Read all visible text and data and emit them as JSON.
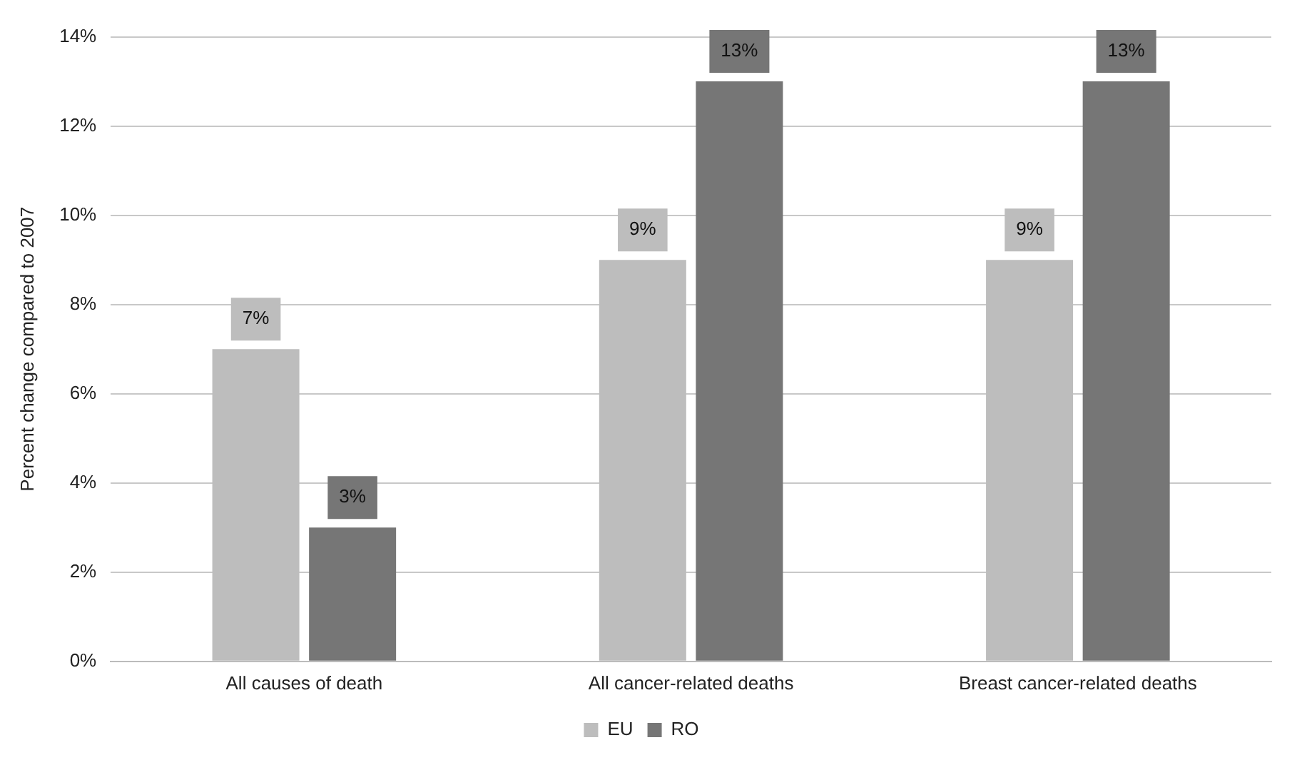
{
  "chart_data": {
    "type": "bar",
    "ylabel": "Percent change compared to 2007",
    "categories": [
      "All causes of death",
      "All cancer-related deaths",
      "Breast cancer-related deaths"
    ],
    "series": [
      {
        "name": "EU",
        "color": "#bdbdbd",
        "values": [
          7,
          9,
          9
        ],
        "value_labels": [
          "7%",
          "9%",
          "9%"
        ]
      },
      {
        "name": "RO",
        "color": "#767676",
        "values": [
          3,
          13,
          13
        ],
        "value_labels": [
          "3%",
          "13%",
          "13%"
        ]
      }
    ],
    "ylim": [
      0,
      14
    ],
    "yticks": [
      {
        "value": 0,
        "label": "0%"
      },
      {
        "value": 2,
        "label": "2%"
      },
      {
        "value": 4,
        "label": "4%"
      },
      {
        "value": 6,
        "label": "6%"
      },
      {
        "value": 8,
        "label": "8%"
      },
      {
        "value": 10,
        "label": "10%"
      },
      {
        "value": 12,
        "label": "12%"
      },
      {
        "value": 14,
        "label": "14%"
      }
    ],
    "grid": "y",
    "legend": "bottom"
  }
}
